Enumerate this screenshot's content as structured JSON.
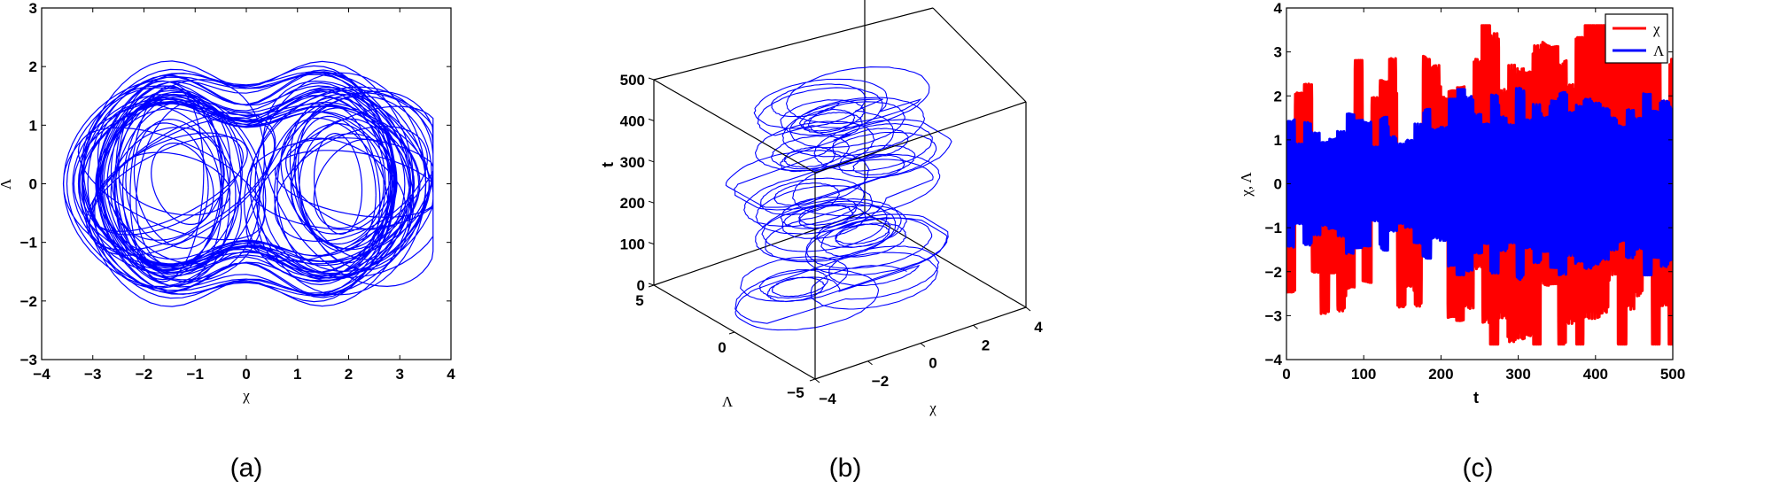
{
  "figure": {
    "panels": [
      {
        "id": "a",
        "caption": "(a)"
      },
      {
        "id": "b",
        "caption": "(b)"
      },
      {
        "id": "c",
        "caption": "(c)"
      }
    ]
  },
  "colors": {
    "trajectory": "#0000ff",
    "chi_series": "#ff0000",
    "lambda_series": "#0000ff",
    "axes": "#000000"
  },
  "chart_data": [
    {
      "panel": "a",
      "type": "line",
      "title": "",
      "description": "Phase portrait: double-scroll chaotic attractor in (χ, Λ) plane",
      "xlabel": "χ",
      "ylabel": "Λ",
      "xlim": [
        -4,
        4
      ],
      "ylim": [
        -3,
        3
      ],
      "xticks": [
        "−4",
        "−3",
        "−2",
        "−1",
        "0",
        "1",
        "2",
        "3",
        "4"
      ],
      "yticks": [
        "−3",
        "−2",
        "−1",
        "0",
        "1",
        "2",
        "3"
      ],
      "grid": false,
      "series": [
        {
          "name": "trajectory",
          "color": "#0000ff",
          "extent": {
            "x_min": -3.6,
            "x_max": 3.6,
            "y_min": -2.55,
            "y_max": 2.55
          },
          "scroll_centers": [
            [
              -1.3,
              0
            ],
            [
              1.8,
              0
            ]
          ]
        }
      ]
    },
    {
      "panel": "b",
      "type": "line",
      "title": "",
      "description": "3D trajectory (χ, Λ, t)",
      "xlabel": "χ",
      "ylabel": "Λ",
      "zlabel": "t",
      "xlim": [
        -4,
        4
      ],
      "ylim": [
        -5,
        5
      ],
      "zlim": [
        0,
        500
      ],
      "xticks": [
        "−4",
        "−2",
        "0",
        "2",
        "4"
      ],
      "yticks": [
        "−5",
        "0",
        "5"
      ],
      "zticks": [
        "0",
        "100",
        "200",
        "300",
        "400",
        "500"
      ],
      "grid": false
    },
    {
      "panel": "c",
      "type": "line",
      "title": "",
      "description": "Time series of χ and Λ",
      "xlabel": "t",
      "ylabel": "χ, Λ",
      "xlim": [
        0,
        500
      ],
      "ylim": [
        -4,
        4
      ],
      "xticks": [
        "0",
        "100",
        "200",
        "300",
        "400",
        "500"
      ],
      "yticks": [
        "−4",
        "−3",
        "−2",
        "−1",
        "0",
        "1",
        "2",
        "3",
        "4"
      ],
      "legend": {
        "position": "upper right",
        "entries": [
          "χ",
          "Λ"
        ]
      },
      "grid": false,
      "series": [
        {
          "name": "χ",
          "color": "#ff0000",
          "range": [
            -3.65,
            3.6
          ]
        },
        {
          "name": "Λ",
          "color": "#0000ff",
          "range": [
            -2.55,
            2.55
          ]
        }
      ]
    }
  ],
  "labels": {
    "a": {
      "xlabel": "χ",
      "ylabel": "Λ",
      "xticks": [
        "−4",
        "−3",
        "−2",
        "−1",
        "0",
        "1",
        "2",
        "3",
        "4"
      ],
      "yticks": [
        "−3",
        "−2",
        "−1",
        "0",
        "1",
        "2",
        "3"
      ]
    },
    "b": {
      "xlabel": "χ",
      "ylabel": "Λ",
      "zlabel": "t",
      "xticks": [
        "−4",
        "−2",
        "0",
        "2",
        "4"
      ],
      "yticks": [
        "−5",
        "0",
        "5"
      ],
      "zticks": [
        "0",
        "100",
        "200",
        "300",
        "400",
        "500"
      ]
    },
    "c": {
      "xlabel": "t",
      "ylabel": "χ, Λ",
      "xticks": [
        "0",
        "100",
        "200",
        "300",
        "400",
        "500"
      ],
      "yticks": [
        "−4",
        "−3",
        "−2",
        "−1",
        "0",
        "1",
        "2",
        "3",
        "4"
      ],
      "legend": [
        "χ",
        "Λ"
      ]
    }
  }
}
